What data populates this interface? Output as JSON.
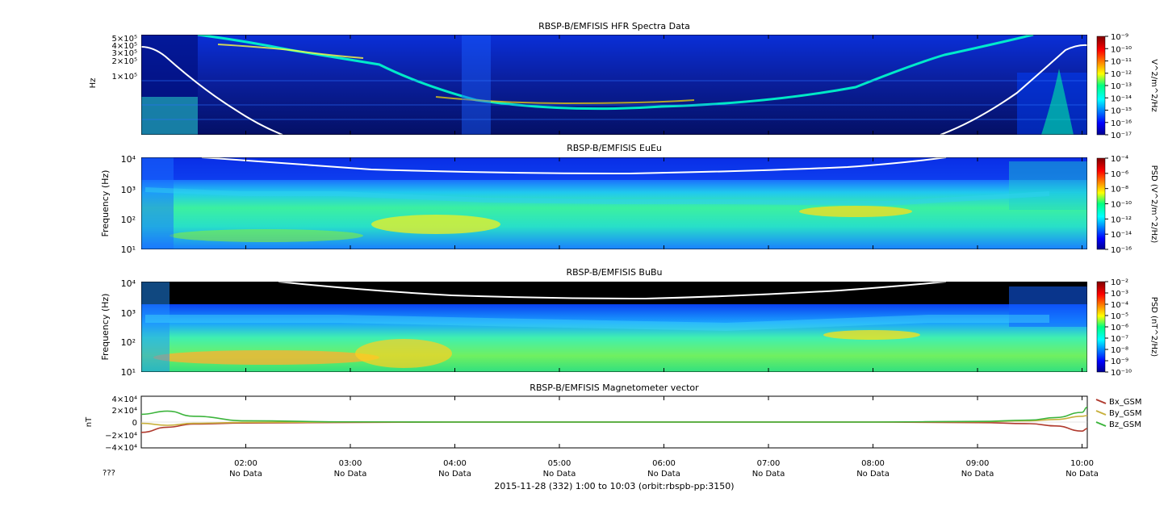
{
  "panels": [
    {
      "title": "RBSP-B/EMFISIS  HFR Spectra Data",
      "ylabel": "Hz",
      "yticks": [
        "5×10⁵",
        "4×10⁵",
        "3×10⁵",
        "2×10⁵",
        "1×10⁵"
      ],
      "cbar_label": "V^2/m^2/Hz",
      "cbar_ticks": [
        "10⁻⁹",
        "10⁻¹⁰",
        "10⁻¹¹",
        "10⁻¹²",
        "10⁻¹³",
        "10⁻¹⁴",
        "10⁻¹⁵",
        "10⁻¹⁶",
        "10⁻¹⁷"
      ]
    },
    {
      "title": "RBSP-B/EMFISIS  EuEu",
      "ylabel": "Frequency (Hz)",
      "yticks": [
        "10⁴",
        "10³",
        "10²",
        "10¹"
      ],
      "cbar_label": "PSD (V^2/m^2/Hz)",
      "cbar_ticks": [
        "10⁻⁴",
        "10⁻⁶",
        "10⁻⁸",
        "10⁻¹⁰",
        "10⁻¹²",
        "10⁻¹⁴",
        "10⁻¹⁶"
      ]
    },
    {
      "title": "RBSP-B/EMFISIS  BuBu",
      "ylabel": "Frequency (Hz)",
      "yticks": [
        "10⁴",
        "10³",
        "10²",
        "10¹"
      ],
      "cbar_label": "PSD (nT^2/Hz)",
      "cbar_ticks": [
        "10⁻²",
        "10⁻³",
        "10⁻⁴",
        "10⁻⁵",
        "10⁻⁶",
        "10⁻⁷",
        "10⁻⁸",
        "10⁻⁹",
        "10⁻¹⁰"
      ]
    },
    {
      "title": "RBSP-B/EMFISIS  Magnetometer vector",
      "ylabel": "nT",
      "yticks": [
        "4×10⁴",
        "2×10⁴",
        "0",
        "−2×10⁴",
        "−4×10⁴"
      ]
    }
  ],
  "xaxis": {
    "ticks": [
      "02:00",
      "03:00",
      "04:00",
      "05:00",
      "06:00",
      "07:00",
      "08:00",
      "09:00",
      "10:00"
    ],
    "sublabels": [
      "No Data",
      "No Data",
      "No Data",
      "No Data",
      "No Data",
      "No Data",
      "No Data",
      "No Data",
      "No Data"
    ],
    "row_label": "???",
    "footer": "2015-11-28 (332) 1:00 to 10:03 (orbit:rbspb-pp:3150)"
  },
  "chart_data": [
    {
      "type": "heatmap",
      "title": "RBSP-B/EMFISIS  HFR Spectra Data",
      "ylabel": "Hz",
      "yscale": "log",
      "zscale": "log",
      "zlim": [
        1e-17,
        1e-09
      ],
      "zlabel": "V^2/m^2/Hz",
      "xlim": [
        "01:00",
        "10:03"
      ],
      "overlay_line_color": "#ffffff"
    },
    {
      "type": "heatmap",
      "title": "RBSP-B/EMFISIS  EuEu",
      "ylabel": "Frequency (Hz)",
      "yscale": "log",
      "ylim": [
        10,
        10000
      ],
      "zscale": "log",
      "zlim": [
        1e-16,
        0.0001
      ],
      "zlabel": "PSD (V^2/m^2/Hz)",
      "xlim": [
        "01:00",
        "10:03"
      ],
      "overlay_line_color": "#ffffff"
    },
    {
      "type": "heatmap",
      "title": "RBSP-B/EMFISIS  BuBu",
      "ylabel": "Frequency (Hz)",
      "yscale": "log",
      "ylim": [
        10,
        10000
      ],
      "zscale": "log",
      "zlim": [
        1e-10,
        0.01
      ],
      "zlabel": "PSD (nT^2/Hz)",
      "xlim": [
        "01:00",
        "10:03"
      ],
      "overlay_line_color": "#ffffff"
    },
    {
      "type": "line",
      "title": "RBSP-B/EMFISIS  Magnetometer vector",
      "ylabel": "nT",
      "ylim": [
        -40000,
        40000
      ],
      "x": [
        "01:00",
        "01:15",
        "01:30",
        "02:00",
        "03:00",
        "04:00",
        "05:00",
        "06:00",
        "07:00",
        "08:00",
        "09:00",
        "09:30",
        "09:45",
        "10:00",
        "10:03"
      ],
      "series": [
        {
          "name": "Bx_GSM",
          "color": "#b03a2e",
          "values": [
            -16000,
            -8000,
            -3000,
            -1500,
            -500,
            0,
            0,
            0,
            0,
            0,
            -800,
            -2500,
            -6000,
            -14000,
            -10000
          ]
        },
        {
          "name": "By_GSM",
          "color": "#c8b03c",
          "values": [
            -2000,
            -5000,
            -2000,
            -500,
            0,
            0,
            0,
            0,
            0,
            0,
            500,
            2000,
            4000,
            9000,
            10000
          ]
        },
        {
          "name": "Bz_GSM",
          "color": "#3cb43c",
          "values": [
            12000,
            17000,
            9000,
            2000,
            300,
            0,
            0,
            0,
            0,
            0,
            1000,
            3000,
            7000,
            15000,
            23000
          ]
        }
      ]
    }
  ]
}
